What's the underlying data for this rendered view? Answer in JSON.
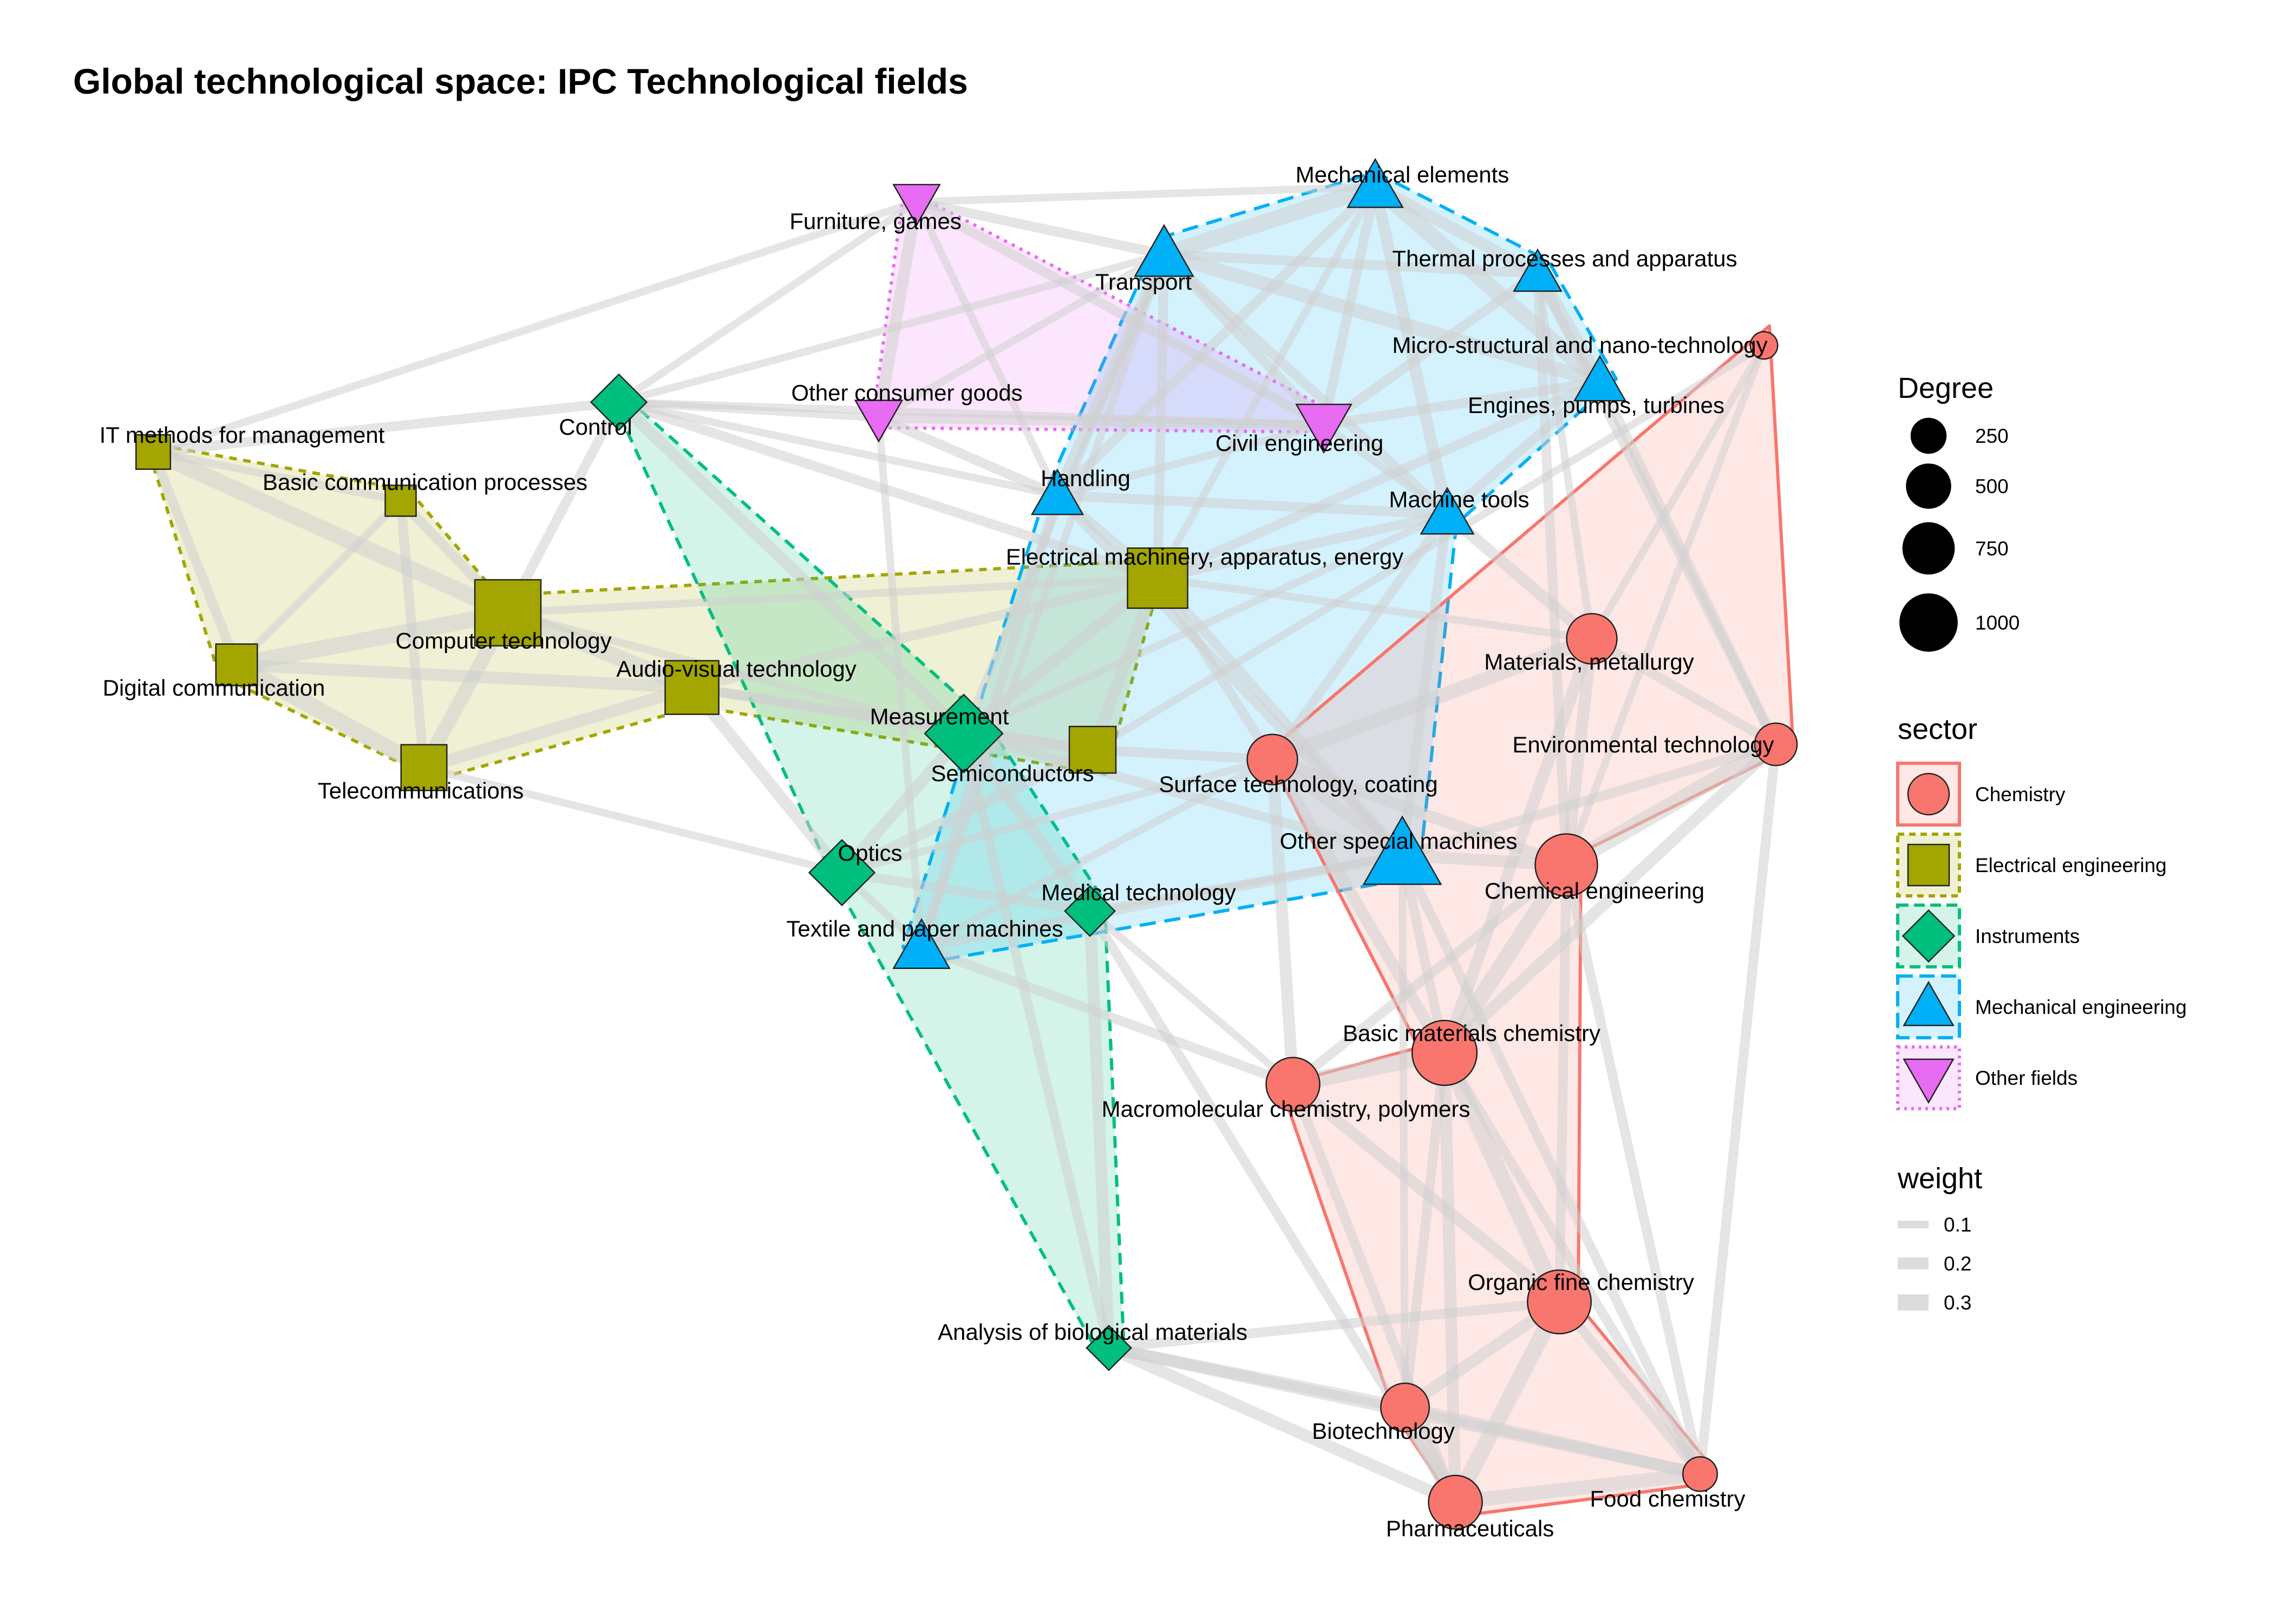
{
  "title": "Global technological space: IPC Technological fields",
  "colors": {
    "Chemistry": "#F8766D",
    "Electrical engineering": "#A3A500",
    "Instruments": "#00BF7D",
    "Mechanical engineering": "#00B0F6",
    "Other fields": "#E76BF3",
    "edge": "#cfcfcf"
  },
  "shapes": {
    "Chemistry": "circle",
    "Electrical engineering": "square",
    "Instruments": "diamond",
    "Mechanical engineering": "triangle-up",
    "Other fields": "triangle-down"
  },
  "nodes": [
    {
      "name": "IT methods for management",
      "sector": "Electrical engineering",
      "degree": 150
    },
    {
      "name": "Basic communication processes",
      "sector": "Electrical engineering",
      "degree": 100
    },
    {
      "name": "Computer technology",
      "sector": "Electrical engineering",
      "degree": 1050
    },
    {
      "name": "Digital communication",
      "sector": "Electrical engineering",
      "degree": 280
    },
    {
      "name": "Telecommunications",
      "sector": "Electrical engineering",
      "degree": 380
    },
    {
      "name": "Audio-visual technology",
      "sector": "Electrical engineering",
      "degree": 600
    },
    {
      "name": "Electrical machinery, apparatus, energy",
      "sector": "Electrical engineering",
      "degree": 820
    },
    {
      "name": "Semiconductors",
      "sector": "Electrical engineering",
      "degree": 400
    },
    {
      "name": "Control",
      "sector": "Instruments",
      "degree": 350
    },
    {
      "name": "Measurement",
      "sector": "Instruments",
      "degree": 900
    },
    {
      "name": "Optics",
      "sector": "Instruments",
      "degree": 560
    },
    {
      "name": "Medical technology",
      "sector": "Instruments",
      "degree": 250
    },
    {
      "name": "Analysis of biological materials",
      "sector": "Instruments",
      "degree": 170
    },
    {
      "name": "Furniture, games",
      "sector": "Other fields",
      "degree": 220
    },
    {
      "name": "Other consumer goods",
      "sector": "Other fields",
      "degree": 230
    },
    {
      "name": "Civil engineering",
      "sector": "Other fields",
      "degree": 380
    },
    {
      "name": "Mechanical elements",
      "sector": "Mechanical engineering",
      "degree": 380
    },
    {
      "name": "Transport",
      "sector": "Mechanical engineering",
      "degree": 450
    },
    {
      "name": "Thermal processes and apparatus",
      "sector": "Mechanical engineering",
      "degree": 240
    },
    {
      "name": "Engines, pumps, turbines",
      "sector": "Mechanical engineering",
      "degree": 300
    },
    {
      "name": "Handling",
      "sector": "Mechanical engineering",
      "degree": 300
    },
    {
      "name": "Machine tools",
      "sector": "Mechanical engineering",
      "degree": 330
    },
    {
      "name": "Other special machines",
      "sector": "Mechanical engineering",
      "degree": 980
    },
    {
      "name": "Textile and paper machines",
      "sector": "Mechanical engineering",
      "degree": 400
    },
    {
      "name": "Micro-structural and nano-technology",
      "sector": "Chemistry",
      "degree": 60
    },
    {
      "name": "Materials, metallurgy",
      "sector": "Chemistry",
      "degree": 500
    },
    {
      "name": "Environmental technology",
      "sector": "Chemistry",
      "degree": 300
    },
    {
      "name": "Surface technology, coating",
      "sector": "Chemistry",
      "degree": 500
    },
    {
      "name": "Chemical engineering",
      "sector": "Chemistry",
      "degree": 900
    },
    {
      "name": "Basic materials chemistry",
      "sector": "Chemistry",
      "degree": 1000
    },
    {
      "name": "Macromolecular chemistry, polymers",
      "sector": "Chemistry",
      "degree": 600
    },
    {
      "name": "Organic fine chemistry",
      "sector": "Chemistry",
      "degree": 950
    },
    {
      "name": "Biotechnology",
      "sector": "Chemistry",
      "degree": 450
    },
    {
      "name": "Pharmaceuticals",
      "sector": "Chemistry",
      "degree": 600
    },
    {
      "name": "Food chemistry",
      "sector": "Chemistry",
      "degree": 150
    }
  ],
  "edges": [
    [
      "Computer technology",
      "IT methods for management",
      0.3
    ],
    [
      "Computer technology",
      "Digital communication",
      0.3
    ],
    [
      "Computer technology",
      "Telecommunications",
      0.25
    ],
    [
      "Computer technology",
      "Basic communication processes",
      0.15
    ],
    [
      "Computer technology",
      "Audio-visual technology",
      0.3
    ],
    [
      "Computer technology",
      "Control",
      0.15
    ],
    [
      "Computer technology",
      "Measurement",
      0.1
    ],
    [
      "Computer technology",
      "Electrical machinery, apparatus, energy",
      0.1
    ],
    [
      "Digital communication",
      "Telecommunications",
      0.3
    ],
    [
      "Digital communication",
      "IT methods for management",
      0.15
    ],
    [
      "Digital communication",
      "Audio-visual technology",
      0.2
    ],
    [
      "Digital communication",
      "Basic communication processes",
      0.1
    ],
    [
      "Telecommunications",
      "Audio-visual technology",
      0.2
    ],
    [
      "Telecommunications",
      "Basic communication processes",
      0.15
    ],
    [
      "Telecommunications",
      "Optics",
      0.1
    ],
    [
      "IT methods for management",
      "Basic communication processes",
      0.1
    ],
    [
      "IT methods for management",
      "Control",
      0.15
    ],
    [
      "IT methods for management",
      "Furniture, games",
      0.1
    ],
    [
      "Audio-visual technology",
      "Optics",
      0.2
    ],
    [
      "Audio-visual technology",
      "Measurement",
      0.15
    ],
    [
      "Audio-visual technology",
      "Semiconductors",
      0.15
    ],
    [
      "Audio-visual technology",
      "Electrical machinery, apparatus, energy",
      0.15
    ],
    [
      "Electrical machinery, apparatus, energy",
      "Semiconductors",
      0.2
    ],
    [
      "Electrical machinery, apparatus, energy",
      "Measurement",
      0.2
    ],
    [
      "Electrical machinery, apparatus, energy",
      "Handling",
      0.15
    ],
    [
      "Electrical machinery, apparatus, energy",
      "Transport",
      0.15
    ],
    [
      "Electrical machinery, apparatus, energy",
      "Machine tools",
      0.15
    ],
    [
      "Electrical machinery, apparatus, energy",
      "Engines, pumps, turbines",
      0.15
    ],
    [
      "Electrical machinery, apparatus, energy",
      "Mechanical elements",
      0.1
    ],
    [
      "Electrical machinery, apparatus, energy",
      "Surface technology, coating",
      0.15
    ],
    [
      "Electrical machinery, apparatus, energy",
      "Materials, metallurgy",
      0.1
    ],
    [
      "Electrical machinery, apparatus, energy",
      "Control",
      0.15
    ],
    [
      "Electrical machinery, apparatus, energy",
      "Other special machines",
      0.15
    ],
    [
      "Semiconductors",
      "Optics",
      0.2
    ],
    [
      "Semiconductors",
      "Measurement",
      0.2
    ],
    [
      "Semiconductors",
      "Surface technology, coating",
      0.15
    ],
    [
      "Semiconductors",
      "Micro-structural and nano-technology",
      0.1
    ],
    [
      "Control",
      "Measurement",
      0.2
    ],
    [
      "Control",
      "Transport",
      0.1
    ],
    [
      "Control",
      "Handling",
      0.1
    ],
    [
      "Control",
      "Other consumer goods",
      0.1
    ],
    [
      "Control",
      "Civil engineering",
      0.1
    ],
    [
      "Control",
      "Furniture, games",
      0.1
    ],
    [
      "Measurement",
      "Optics",
      0.2
    ],
    [
      "Measurement",
      "Medical technology",
      0.2
    ],
    [
      "Measurement",
      "Analysis of biological materials",
      0.15
    ],
    [
      "Measurement",
      "Other special machines",
      0.15
    ],
    [
      "Measurement",
      "Machine tools",
      0.1
    ],
    [
      "Measurement",
      "Transport",
      0.1
    ],
    [
      "Optics",
      "Medical technology",
      0.15
    ],
    [
      "Optics",
      "Textile and paper machines",
      0.1
    ],
    [
      "Optics",
      "Surface technology, coating",
      0.1
    ],
    [
      "Medical technology",
      "Analysis of biological materials",
      0.2
    ],
    [
      "Medical technology",
      "Pharmaceuticals",
      0.15
    ],
    [
      "Medical technology",
      "Macromolecular chemistry, polymers",
      0.1
    ],
    [
      "Medical technology",
      "Other special machines",
      0.1
    ],
    [
      "Analysis of biological materials",
      "Biotechnology",
      0.2
    ],
    [
      "Analysis of biological materials",
      "Pharmaceuticals",
      0.2
    ],
    [
      "Analysis of biological materials",
      "Food chemistry",
      0.2
    ],
    [
      "Analysis of biological materials",
      "Organic fine chemistry",
      0.15
    ],
    [
      "Furniture, games",
      "Other consumer goods",
      0.2
    ],
    [
      "Furniture, games",
      "Civil engineering",
      0.15
    ],
    [
      "Furniture, games",
      "Transport",
      0.15
    ],
    [
      "Furniture, games",
      "Mechanical elements",
      0.1
    ],
    [
      "Furniture, games",
      "Handling",
      0.1
    ],
    [
      "Other consumer goods",
      "Civil engineering",
      0.15
    ],
    [
      "Other consumer goods",
      "Transport",
      0.1
    ],
    [
      "Other consumer goods",
      "Handling",
      0.15
    ],
    [
      "Other consumer goods",
      "Textile and paper machines",
      0.1
    ],
    [
      "Civil engineering",
      "Transport",
      0.15
    ],
    [
      "Civil engineering",
      "Mechanical elements",
      0.15
    ],
    [
      "Civil engineering",
      "Thermal processes and apparatus",
      0.15
    ],
    [
      "Civil engineering",
      "Engines, pumps, turbines",
      0.15
    ],
    [
      "Civil engineering",
      "Machine tools",
      0.1
    ],
    [
      "Civil engineering",
      "Handling",
      0.1
    ],
    [
      "Mechanical elements",
      "Transport",
      0.3
    ],
    [
      "Mechanical elements",
      "Thermal processes and apparatus",
      0.2
    ],
    [
      "Mechanical elements",
      "Engines, pumps, turbines",
      0.3
    ],
    [
      "Mechanical elements",
      "Handling",
      0.15
    ],
    [
      "Mechanical elements",
      "Machine tools",
      0.2
    ],
    [
      "Transport",
      "Engines, pumps, turbines",
      0.25
    ],
    [
      "Transport",
      "Handling",
      0.2
    ],
    [
      "Transport",
      "Machine tools",
      0.15
    ],
    [
      "Transport",
      "Thermal processes and apparatus",
      0.15
    ],
    [
      "Transport",
      "Textile and paper machines",
      0.1
    ],
    [
      "Thermal processes and apparatus",
      "Engines, pumps, turbines",
      0.25
    ],
    [
      "Thermal processes and apparatus",
      "Environmental technology",
      0.15
    ],
    [
      "Thermal processes and apparatus",
      "Chemical engineering",
      0.15
    ],
    [
      "Thermal processes and apparatus",
      "Materials, metallurgy",
      0.1
    ],
    [
      "Engines, pumps, turbines",
      "Machine tools",
      0.15
    ],
    [
      "Engines, pumps, turbines",
      "Environmental technology",
      0.15
    ],
    [
      "Handling",
      "Machine tools",
      0.15
    ],
    [
      "Handling",
      "Other special machines",
      0.15
    ],
    [
      "Handling",
      "Textile and paper machines",
      0.15
    ],
    [
      "Machine tools",
      "Materials, metallurgy",
      0.2
    ],
    [
      "Machine tools",
      "Surface technology, coating",
      0.15
    ],
    [
      "Machine tools",
      "Other special machines",
      0.15
    ],
    [
      "Other special machines",
      "Chemical engineering",
      0.2
    ],
    [
      "Other special machines",
      "Textile and paper machines",
      0.15
    ],
    [
      "Other special machines",
      "Surface technology, coating",
      0.2
    ],
    [
      "Other special machines",
      "Basic materials chemistry",
      0.15
    ],
    [
      "Other special machines",
      "Food chemistry",
      0.15
    ],
    [
      "Other special machines",
      "Environmental technology",
      0.15
    ],
    [
      "Other special machines",
      "Biotechnology",
      0.1
    ],
    [
      "Textile and paper machines",
      "Macromolecular chemistry, polymers",
      0.15
    ],
    [
      "Textile and paper machines",
      "Surface technology, coating",
      0.1
    ],
    [
      "Micro-structural and nano-technology",
      "Materials, metallurgy",
      0.1
    ],
    [
      "Micro-structural and nano-technology",
      "Chemical engineering",
      0.1
    ],
    [
      "Materials, metallurgy",
      "Surface technology, coating",
      0.25
    ],
    [
      "Materials, metallurgy",
      "Basic materials chemistry",
      0.2
    ],
    [
      "Materials, metallurgy",
      "Chemical engineering",
      0.2
    ],
    [
      "Materials, metallurgy",
      "Environmental technology",
      0.15
    ],
    [
      "Environmental technology",
      "Chemical engineering",
      0.3
    ],
    [
      "Environmental technology",
      "Basic materials chemistry",
      0.2
    ],
    [
      "Environmental technology",
      "Food chemistry",
      0.15
    ],
    [
      "Surface technology, coating",
      "Chemical engineering",
      0.2
    ],
    [
      "Surface technology, coating",
      "Macromolecular chemistry, polymers",
      0.2
    ],
    [
      "Surface technology, coating",
      "Basic materials chemistry",
      0.2
    ],
    [
      "Chemical engineering",
      "Basic materials chemistry",
      0.3
    ],
    [
      "Chemical engineering",
      "Macromolecular chemistry, polymers",
      0.15
    ],
    [
      "Chemical engineering",
      "Organic fine chemistry",
      0.15
    ],
    [
      "Chemical engineering",
      "Food chemistry",
      0.15
    ],
    [
      "Basic materials chemistry",
      "Macromolecular chemistry, polymers",
      0.3
    ],
    [
      "Basic materials chemistry",
      "Organic fine chemistry",
      0.3
    ],
    [
      "Basic materials chemistry",
      "Pharmaceuticals",
      0.2
    ],
    [
      "Basic materials chemistry",
      "Biotechnology",
      0.15
    ],
    [
      "Basic materials chemistry",
      "Food chemistry",
      0.15
    ],
    [
      "Macromolecular chemistry, polymers",
      "Organic fine chemistry",
      0.2
    ],
    [
      "Macromolecular chemistry, polymers",
      "Pharmaceuticals",
      0.15
    ],
    [
      "Organic fine chemistry",
      "Pharmaceuticals",
      0.3
    ],
    [
      "Organic fine chemistry",
      "Biotechnology",
      0.2
    ],
    [
      "Organic fine chemistry",
      "Food chemistry",
      0.15
    ],
    [
      "Biotechnology",
      "Pharmaceuticals",
      0.3
    ],
    [
      "Biotechnology",
      "Food chemistry",
      0.2
    ],
    [
      "Pharmaceuticals",
      "Food chemistry",
      0.25
    ]
  ],
  "legend": {
    "degree": {
      "title": "Degree",
      "breaks": [
        "250",
        "500",
        "750",
        "1000"
      ]
    },
    "sector": {
      "title": "sector",
      "items": [
        "Chemistry",
        "Electrical engineering",
        "Instruments",
        "Mechanical engineering",
        "Other fields"
      ]
    },
    "weight": {
      "title": "weight",
      "breaks": [
        "0.1",
        "0.2",
        "0.3"
      ]
    }
  }
}
